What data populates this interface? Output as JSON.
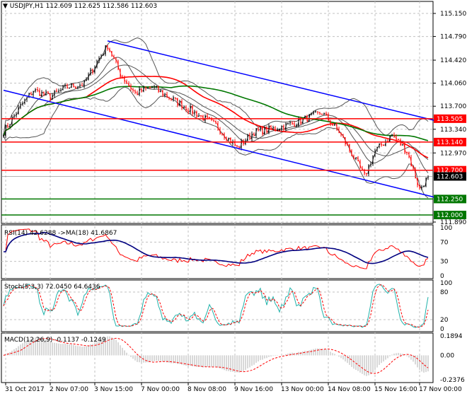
{
  "header": {
    "symbol": "USDJPY,H1",
    "ohlc": "112.609 112.625 112.586 112.603"
  },
  "colors": {
    "bull": "#000000",
    "bear": "#ff0000",
    "ma_fast": "#ff0000",
    "ma_slow": "#007700",
    "bands": "#555555",
    "channel": "#0000ff",
    "resistance": "#ff0000",
    "support": "#007700",
    "rsi": "#ff0000",
    "rsi_ma": "#000080",
    "stoch_main": "#20b2aa",
    "stoch_signal": "#ff0000",
    "macd_hist": "#b0b0b0",
    "macd_signal": "#ff0000",
    "grid": "#c0c0c0"
  },
  "chart_data": [
    {
      "type": "candlestick",
      "title": "USDJPY,H1",
      "ylim": [
        111.89,
        115.15
      ],
      "y_ticks": [
        "115.150",
        "114.790",
        "114.420",
        "114.060",
        "113.700",
        "113.340",
        "112.970",
        "111.890"
      ],
      "x_ticks": [
        "31 Oct 2017",
        "2 Nov 07:00",
        "3 Nov 15:00",
        "7 Nov 00:00",
        "8 Nov 08:00",
        "9 Nov 16:00",
        "13 Nov 00:00",
        "14 Nov 08:00",
        "15 Nov 16:00",
        "17 Nov 00:00"
      ],
      "x_tick_bars": [
        1,
        22,
        43,
        65,
        87,
        109,
        131,
        153,
        175,
        196
      ],
      "close_path": [
        [
          0,
          113.3
        ],
        [
          8,
          113.7
        ],
        [
          14,
          113.95
        ],
        [
          22,
          113.85
        ],
        [
          30,
          114.0
        ],
        [
          38,
          114.05
        ],
        [
          44,
          114.4
        ],
        [
          49,
          114.65
        ],
        [
          55,
          114.2
        ],
        [
          62,
          113.9
        ],
        [
          70,
          114.0
        ],
        [
          80,
          113.8
        ],
        [
          90,
          113.6
        ],
        [
          100,
          113.4
        ],
        [
          110,
          113.05
        ],
        [
          118,
          113.3
        ],
        [
          128,
          113.35
        ],
        [
          138,
          113.45
        ],
        [
          150,
          113.6
        ],
        [
          158,
          113.3
        ],
        [
          165,
          112.9
        ],
        [
          170,
          112.6
        ],
        [
          175,
          113.0
        ],
        [
          183,
          113.25
        ],
        [
          190,
          113.0
        ],
        [
          196,
          112.4
        ],
        [
          200,
          112.6
        ]
      ],
      "levels": [
        {
          "price": 113.505,
          "label": "113.505",
          "kind": "resistance"
        },
        {
          "price": 113.14,
          "label": "113.140",
          "kind": "resistance"
        },
        {
          "price": 112.7,
          "label": "112.700",
          "kind": "resistance"
        },
        {
          "price": 112.25,
          "label": "112.250",
          "kind": "support"
        },
        {
          "price": 112.0,
          "label": "112.000",
          "kind": "support"
        }
      ],
      "current_price": {
        "price": 112.603,
        "label": "112.603"
      },
      "channel": [
        {
          "from": [
            49,
            114.72
          ],
          "to": [
            204,
            113.47
          ]
        },
        {
          "from": [
            0,
            113.95
          ],
          "to": [
            204,
            112.27
          ]
        }
      ]
    },
    {
      "type": "line",
      "title": "RSI(14) 42.6288  ->MA(18) 41.6867",
      "ylim": [
        0,
        100
      ],
      "y_ticks": [
        "100",
        "70",
        "30",
        "0"
      ]
    },
    {
      "type": "line",
      "title": "Stoch(5,3,3) 72.0450 64.6436",
      "ylim": [
        0,
        100
      ],
      "y_ticks": [
        "100",
        "80",
        "20",
        "0"
      ]
    },
    {
      "type": "bar",
      "title": "MACD(12,26,9) -0.1137 -0.1249",
      "ylim": [
        -0.2376,
        0.1894
      ],
      "y_ticks": [
        "0.1894",
        "0.00",
        "-0.2376"
      ]
    }
  ]
}
